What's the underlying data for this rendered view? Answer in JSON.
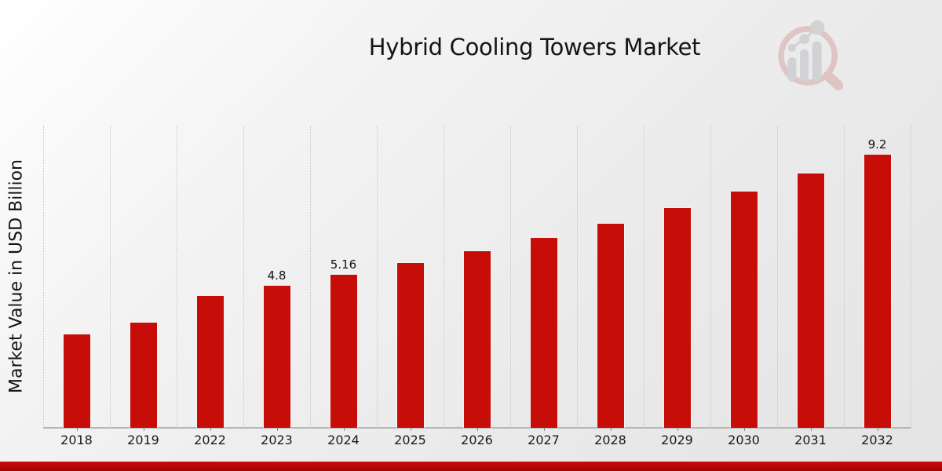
{
  "page": {
    "title": "Hybrid Cooling Towers Market"
  },
  "y_axis": {
    "label": "Market Value in USD Billion"
  },
  "logo": {
    "name": "magnifier-bar-chart-watermark"
  },
  "colors": {
    "bar": "#c60d08",
    "bar_border": "#f5f5f5",
    "ribbon_top": "#c60d08",
    "ribbon_bottom": "#9a0302",
    "gridline": "#c5c5c5",
    "axis_line": "#b5b5b5",
    "text": "#111111"
  },
  "chart_data": {
    "type": "bar",
    "title": "Hybrid Cooling Towers Market",
    "xlabel": "",
    "ylabel": "Market Value in USD Billion",
    "categories": [
      "2018",
      "2019",
      "2022",
      "2023",
      "2024",
      "2025",
      "2026",
      "2027",
      "2028",
      "2029",
      "2030",
      "2031",
      "2032"
    ],
    "values": [
      3.17,
      3.56,
      4.46,
      4.8,
      5.16,
      5.55,
      5.96,
      6.41,
      6.89,
      7.41,
      7.97,
      8.56,
      9.2
    ],
    "data_labels": [
      "",
      "",
      "",
      "4.8",
      "5.16",
      "",
      "",
      "",
      "",
      "",
      "",
      "",
      "9.2"
    ],
    "ylim": [
      0,
      10.15
    ],
    "grid": "vertical-dotted",
    "legend": "none",
    "bar_color": "#c60d08"
  }
}
